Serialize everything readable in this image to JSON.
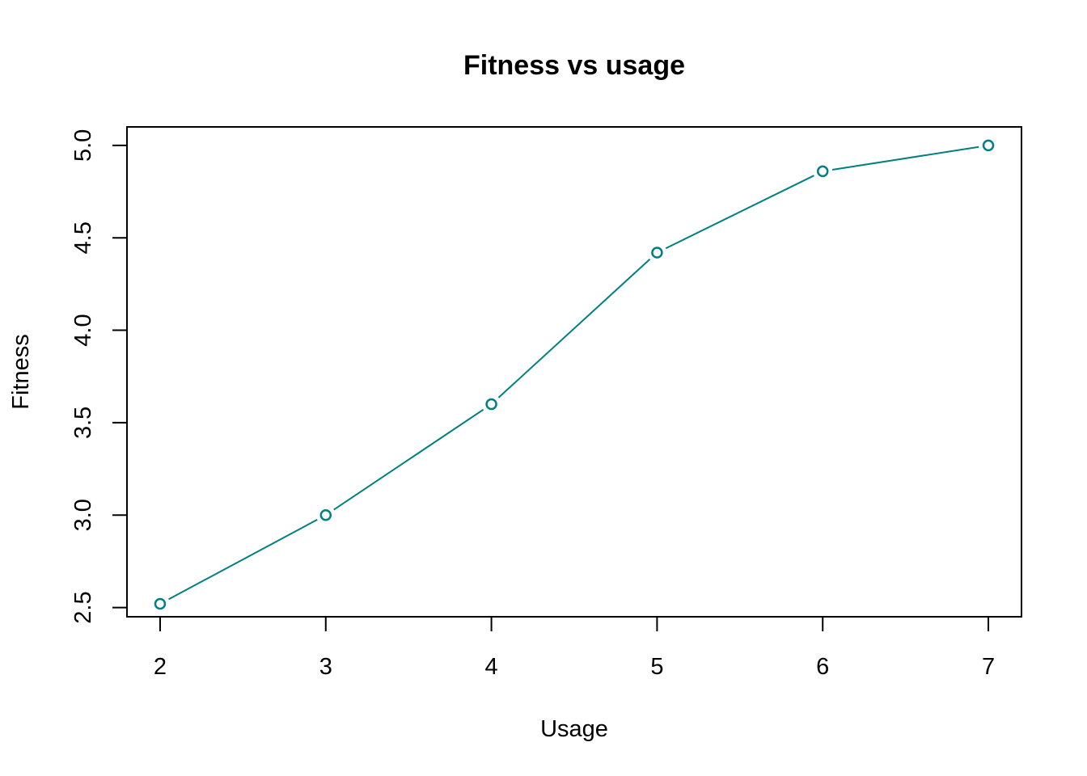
{
  "chart_data": {
    "type": "line",
    "title": "Fitness vs usage",
    "xlabel": "Usage",
    "ylabel": "Fitness",
    "x": [
      2,
      3,
      4,
      5,
      6,
      7
    ],
    "series": [
      {
        "values": [
          2.52,
          3.0,
          3.6,
          4.42,
          4.86,
          5.0
        ]
      }
    ],
    "xlim": [
      1.8,
      7.2
    ],
    "ylim": [
      2.45,
      5.1
    ],
    "x_ticks": [
      "2",
      "3",
      "4",
      "5",
      "6",
      "7"
    ],
    "x_tick_values": [
      2,
      3,
      4,
      5,
      6,
      7
    ],
    "y_ticks": [
      "2.5",
      "3.0",
      "3.5",
      "4.0",
      "4.5",
      "5.0"
    ],
    "y_tick_values": [
      2.5,
      3.0,
      3.5,
      4.0,
      4.5,
      5.0
    ],
    "line_color": "#008080",
    "marker": "open-circle",
    "grid": false,
    "legend": false
  }
}
